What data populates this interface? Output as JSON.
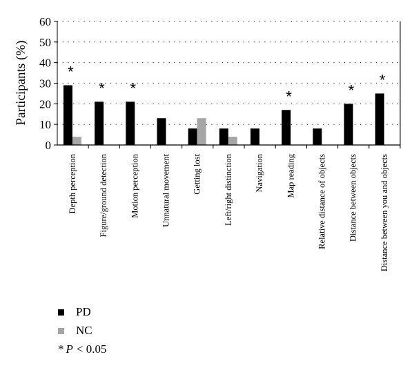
{
  "chart_data": {
    "type": "bar",
    "categories": [
      "Depth perception",
      "Figure/ground detection",
      "Motion perception",
      "Unnatural movement",
      "Getting lost",
      "Left/right distinction",
      "Navigation",
      "Map reading",
      "Relative distance of objects",
      "Distance between objects",
      "Distance between you and objects"
    ],
    "series": [
      {
        "name": "PD",
        "color": "#000000",
        "values": [
          29,
          21,
          21,
          13,
          8,
          8,
          8,
          17,
          8,
          20,
          25
        ]
      },
      {
        "name": "NC",
        "color": "#a6a6a6",
        "values": [
          4,
          0,
          0,
          0,
          13,
          4,
          0,
          0,
          0,
          0,
          0
        ]
      }
    ],
    "significant": [
      true,
      true,
      true,
      false,
      false,
      false,
      false,
      true,
      false,
      true,
      true
    ],
    "ylabel": "Participants (%)",
    "ylim": [
      0,
      60
    ],
    "yticks": [
      0,
      10,
      20,
      30,
      40,
      50,
      60
    ],
    "grid": true,
    "legend_position": "bottom-left"
  },
  "annotation": {
    "marker": "*",
    "p_label": "P",
    "threshold": "< 0.05"
  }
}
